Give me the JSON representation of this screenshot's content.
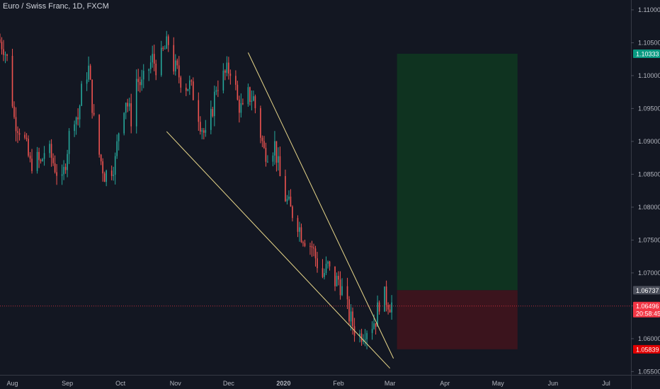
{
  "chart_data": {
    "type": "candlestick",
    "title": "Euro / Swiss Franc, 1D, FXCM",
    "y_axis": {
      "range": [
        1.0545,
        1.1115
      ],
      "ticks": [
        "1.11000",
        "1.10500",
        "1.10000",
        "1.09500",
        "1.09000",
        "1.08500",
        "1.08000",
        "1.07500",
        "1.07000",
        "1.06500",
        "1.06000",
        "1.05500"
      ]
    },
    "x_axis": {
      "ticks": [
        {
          "label": "Aug",
          "day": 7,
          "bold": false
        },
        {
          "label": "Sep",
          "day": 38,
          "bold": false
        },
        {
          "label": "Oct",
          "day": 68,
          "bold": false
        },
        {
          "label": "Nov",
          "day": 99,
          "bold": false
        },
        {
          "label": "Dec",
          "day": 129,
          "bold": false
        },
        {
          "label": "2020",
          "day": 160,
          "bold": true
        },
        {
          "label": "Feb",
          "day": 191,
          "bold": false
        },
        {
          "label": "Mar",
          "day": 220,
          "bold": false
        },
        {
          "label": "Apr",
          "day": 251,
          "bold": false
        },
        {
          "label": "May",
          "day": 281,
          "bold": false
        },
        {
          "label": "Jun",
          "day": 312,
          "bold": false
        },
        {
          "label": "Jul",
          "day": 342,
          "bold": false
        }
      ],
      "day_range": [
        0,
        356
      ]
    },
    "price_path": [
      [
        0,
        1.1055
      ],
      [
        3,
        1.1045
      ],
      [
        6,
        1.1015
      ],
      [
        9,
        1.0935
      ],
      [
        12,
        1.092
      ],
      [
        15,
        1.09
      ],
      [
        18,
        1.0865
      ],
      [
        21,
        1.0875
      ],
      [
        24,
        1.0865
      ],
      [
        27,
        1.0895
      ],
      [
        30,
        1.0875
      ],
      [
        33,
        1.0855
      ],
      [
        36,
        1.0835
      ],
      [
        39,
        1.089
      ],
      [
        42,
        1.0945
      ],
      [
        45,
        1.0935
      ],
      [
        48,
        1.0995
      ],
      [
        51,
        1.101
      ],
      [
        54,
        1.093
      ],
      [
        57,
        1.088
      ],
      [
        60,
        1.085
      ],
      [
        63,
        1.0855
      ],
      [
        66,
        1.087
      ],
      [
        69,
        1.094
      ],
      [
        72,
        1.0965
      ],
      [
        75,
        1.0935
      ],
      [
        78,
        1.0995
      ],
      [
        81,
        1.0985
      ],
      [
        84,
        1.1005
      ],
      [
        87,
        1.1025
      ],
      [
        90,
        1.101
      ],
      [
        93,
        1.1035
      ],
      [
        96,
        1.105
      ],
      [
        99,
        1.1015
      ],
      [
        102,
        1.1
      ],
      [
        105,
        1.0985
      ],
      [
        108,
        1.0985
      ],
      [
        111,
        1.0965
      ],
      [
        114,
        1.093
      ],
      [
        117,
        1.0905
      ],
      [
        120,
        1.0935
      ],
      [
        123,
        1.0985
      ],
      [
        126,
        1.0995
      ],
      [
        129,
        1.1005
      ],
      [
        132,
        1.1015
      ],
      [
        135,
        1.096
      ],
      [
        138,
        1.0945
      ],
      [
        141,
        1.097
      ],
      [
        144,
        1.0965
      ],
      [
        147,
        1.0925
      ],
      [
        150,
        1.0885
      ],
      [
        153,
        1.0885
      ],
      [
        156,
        1.0895
      ],
      [
        159,
        1.0845
      ],
      [
        162,
        1.0815
      ],
      [
        165,
        1.0795
      ],
      [
        168,
        1.0785
      ],
      [
        171,
        1.076
      ],
      [
        174,
        1.075
      ],
      [
        177,
        1.074
      ],
      [
        180,
        1.0715
      ],
      [
        183,
        1.0695
      ],
      [
        186,
        1.071
      ],
      [
        189,
        1.0685
      ],
      [
        192,
        1.069
      ],
      [
        195,
        1.0665
      ],
      [
        198,
        1.0635
      ],
      [
        201,
        1.0615
      ],
      [
        204,
        1.0605
      ],
      [
        207,
        1.0615
      ],
      [
        210,
        1.062
      ],
      [
        213,
        1.063
      ],
      [
        216,
        1.067
      ],
      [
        219,
        1.066
      ],
      [
        221,
        1.0653
      ]
    ],
    "trendlines": [
      {
        "start": {
          "day": 94,
          "price": 1.0915
        },
        "end": {
          "day": 220,
          "price": 1.0555
        }
      },
      {
        "start": {
          "day": 140,
          "price": 1.1035
        },
        "end": {
          "day": 222,
          "price": 1.057
        }
      }
    ],
    "position": {
      "start_day": 224,
      "end_day": 292,
      "entry": 1.06737,
      "target": 1.10333,
      "stop": 1.05839
    },
    "current_price": 1.06496,
    "price_tags": [
      {
        "name": "target-price-tag",
        "price": 1.10333,
        "label": "1.10333",
        "color": "#089981"
      },
      {
        "name": "entry-price-tag",
        "price": 1.06737,
        "label": "1.06737",
        "color": "#4a4e5a"
      },
      {
        "name": "current-price-tag",
        "price": 1.06496,
        "label": "1.06496",
        "sublabel": "20:58:45",
        "color": "#f23645"
      },
      {
        "name": "stop-price-tag",
        "price": 1.05839,
        "label": "1.05839",
        "color": "#e20000"
      }
    ],
    "colors": {
      "background": "#131722",
      "up": "#26a69a",
      "down": "#ef5350",
      "trendline": "#e8d78a",
      "profit_zone": "#0f3320",
      "loss_zone": "#3b141d",
      "axis_text": "#b2b5be",
      "current_line": "#f23645"
    }
  }
}
